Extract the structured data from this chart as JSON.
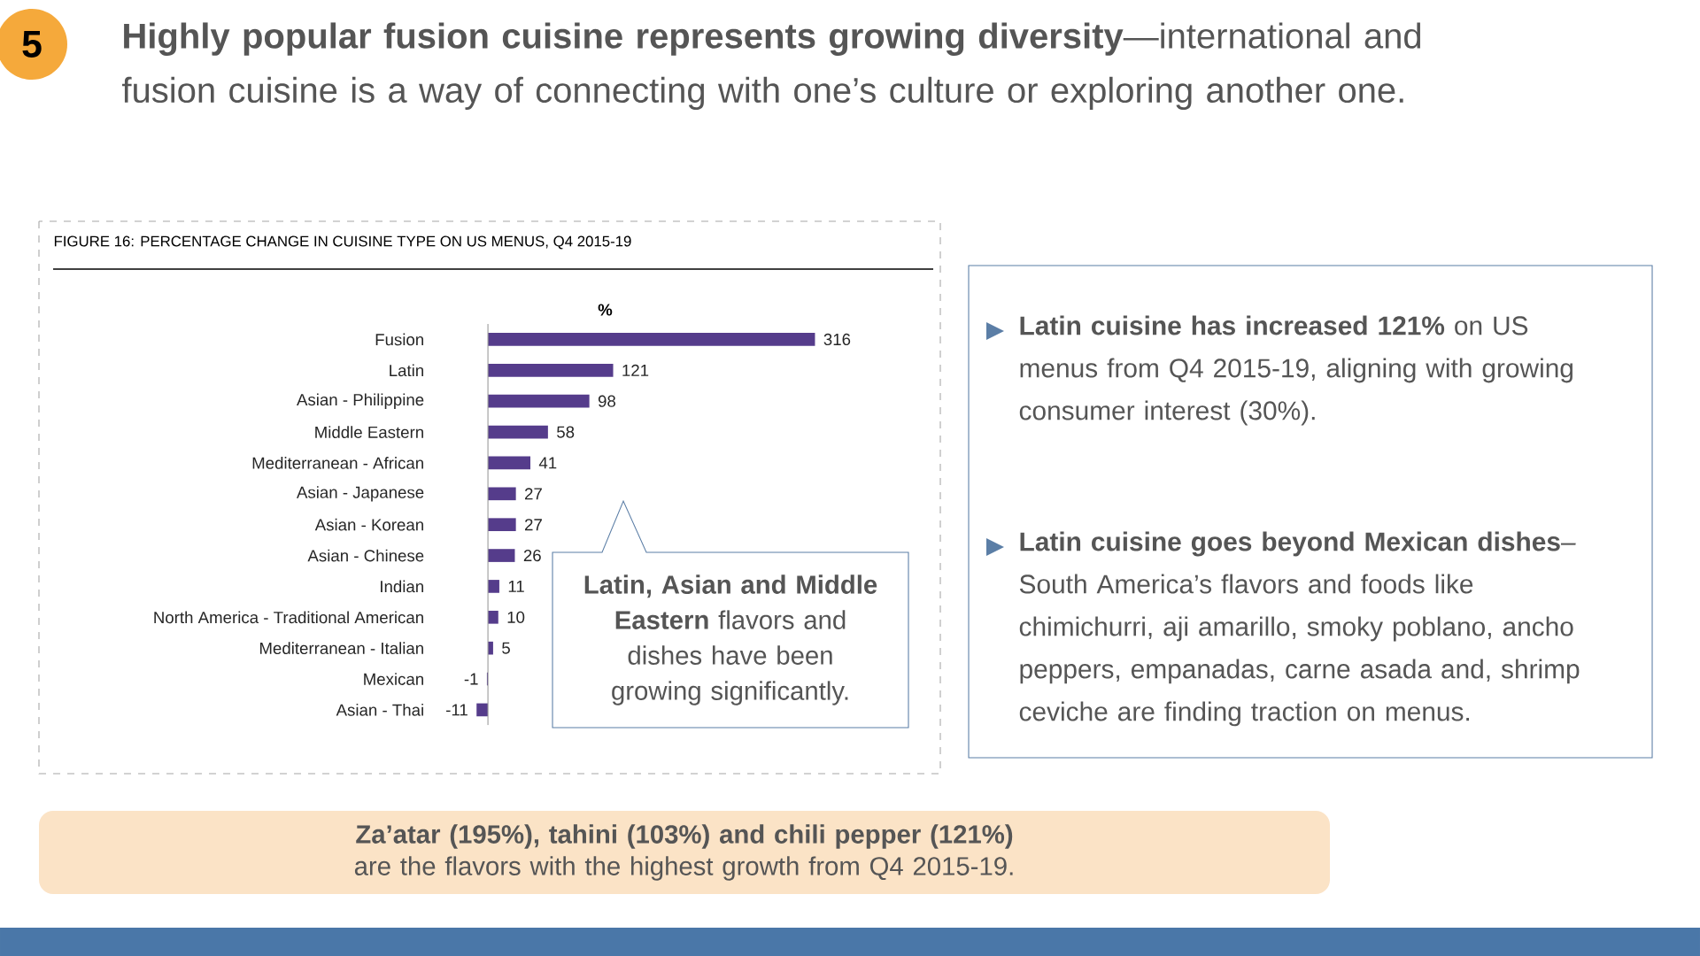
{
  "chart_data": {
    "type": "bar",
    "orientation": "horizontal",
    "title": "**Highly popular fusion cuisine represents growing diversity**—international and fusion cuisine is a way of connecting with one’s culture or exploring another one.",
    "subtitle": "FIGURE 16: PERCENTAGE CHANGE IN CUISINE TYPE ON US MENUS, Q4 2015-19",
    "xlabel": "%",
    "categories": [
      "Fusion",
      "Latin",
      "Asian - Philippine",
      "Middle Eastern",
      "Mediterranean - African",
      "Asian - Japanese",
      "Asian - Korean",
      "Asian - Chinese",
      "Indian",
      "North America - Traditional American",
      "Mediterranean - Italian",
      "Mexican",
      "Asian - Thai"
    ],
    "values": [
      316,
      121,
      98,
      58,
      41,
      27,
      27,
      26,
      11,
      10,
      5,
      -1,
      -11
    ],
    "color": "#553c8b",
    "data_labels": true,
    "tick_labels": "y",
    "annotations": [
      "5",
      "**Latin, Asian and Middle Eastern** flavors and dishes have been growing significantly.",
      "**Latin cuisine has increased 121%** on US menus from Q4 2015-19, aligning with growing consumer interest (30%).",
      "**Latin cuisine goes beyond Mexican dishes**– South America’s flavors and foods like chimichurri, aji amarillo, smoky poblano, ancho peppers, empanadas, carne asada and, shrimp ceviche are finding traction on menus.",
      "**Za’atar (195%), tahini (103%) and chili pepper (121%)**  are the flavors with the highest growth from Q4 2015-19."
    ]
  }
}
